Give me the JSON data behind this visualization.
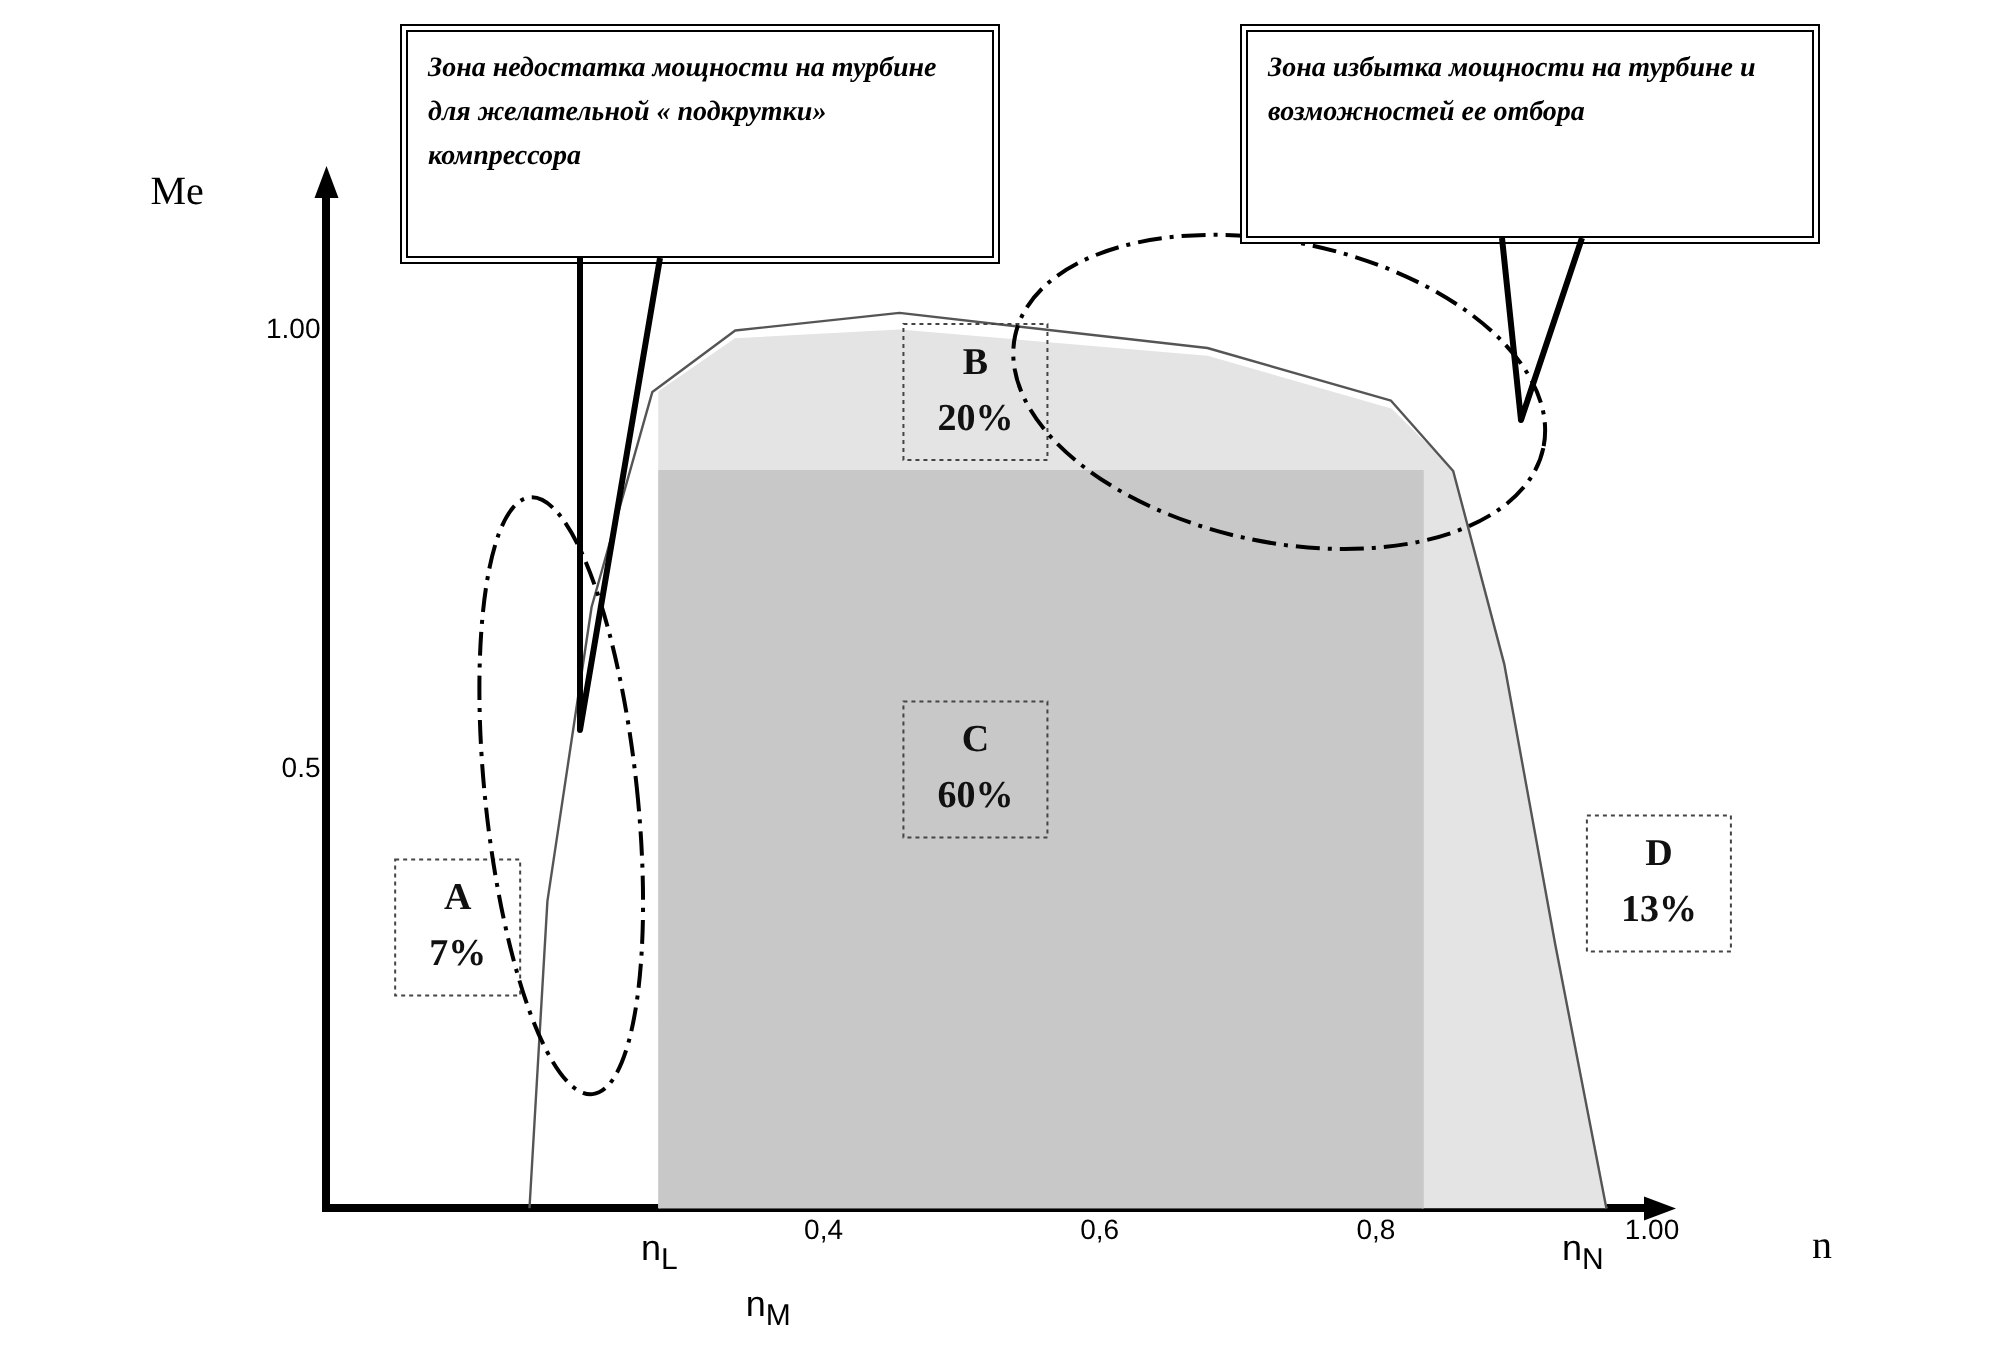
{
  "chart_data": {
    "type": "area",
    "xlabel": "n",
    "ylabel": "Me",
    "xlim": [
      0.04,
      1.0
    ],
    "ylim": [
      0,
      1.16
    ],
    "xticks": [
      {
        "value": 0.4,
        "label": "0,4"
      },
      {
        "value": 0.6,
        "label": "0,6"
      },
      {
        "value": 0.8,
        "label": "0,8"
      },
      {
        "value": 1.0,
        "label": "1.00"
      }
    ],
    "yticks": [
      {
        "value": 0.5,
        "label": "0.5"
      },
      {
        "value": 1.0,
        "label": "1.00"
      }
    ],
    "grid": false,
    "legend": false,
    "series": [
      {
        "color": "#e4e4e4",
        "x": [
          0.281,
          0.281,
          0.336,
          0.455,
          0.678,
          0.811,
          0.856,
          0.893,
          0.93,
          0.967
        ],
        "values": [
          0,
          0.93,
          0.99,
          1.0,
          0.97,
          0.91,
          0.84,
          0.62,
          0.3,
          0
        ]
      },
      {
        "color": "#c8c8c8",
        "x": [
          0.281,
          0.281,
          0.834,
          0.834
        ],
        "values": [
          0,
          0.84,
          0.84,
          0
        ]
      },
      {
        "type": "line",
        "color": "#555555",
        "x": [
          0.187,
          0.2,
          0.232,
          0.276,
          0.336,
          0.455,
          0.678,
          0.811,
          0.856,
          0.893,
          0.93,
          0.967
        ],
        "values": [
          0,
          0.35,
          0.685,
          0.93,
          1.0,
          1.02,
          0.98,
          0.92,
          0.84,
          0.62,
          0.3,
          0
        ]
      }
    ],
    "annotations": [
      "Зона  недостатка мощности на турбине для желательной « подкрутки» компрессора",
      "Зона избытка мощности на турбине и возможностей ее отбора",
      "A\n7%",
      "B\n20%",
      "C\n60%",
      "D\n13%",
      {
        "text": "n$_{L}$",
        "x": 0.281,
        "y": 0
      },
      {
        "text": "n$_{M}$",
        "x": 0.36,
        "y": 0
      },
      {
        "text": "n$_{N}$",
        "x": 0.95,
        "y": 0
      }
    ]
  }
}
